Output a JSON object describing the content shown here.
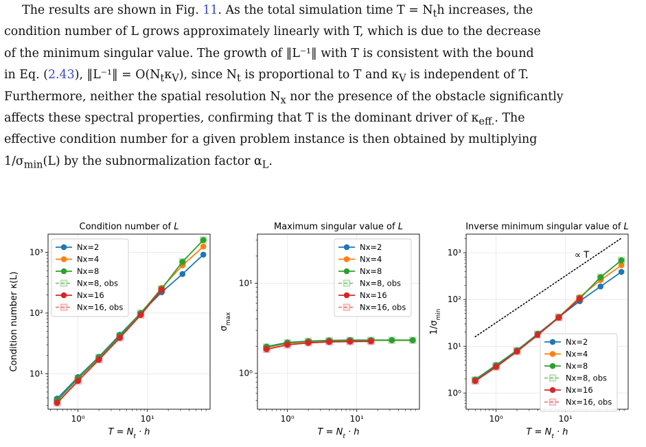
{
  "text": {
    "lines": [
      [
        "The results are shown in Fig. ",
        "11",
        ". As the total simulation time T = N",
        "t",
        "h increases, the"
      ],
      "condition number of L grows approximately linearly with T, which is due to the decrease",
      "of the minimum singular value. The growth of ‖L⁻¹‖ with T is consistent with the bound",
      [
        "in Eq. (",
        "2.43",
        "), ‖L⁻¹‖ = O(N",
        "t",
        "κ",
        "V",
        "), since N",
        "t",
        " is proportional to T and κ",
        "V",
        " is independent of T."
      ],
      [
        "Furthermore, neither the spatial resolution N",
        "x",
        " nor the presence of the obstacle significantly"
      ],
      [
        "affects these spectral properties, confirming that T is the dominant driver of κ",
        "eff.",
        ". The"
      ],
      "effective condition number for a given problem instance is then obtained by multiplying",
      [
        "1/σ",
        "min",
        "(L) by the subnormalization factor α",
        "L",
        "."
      ]
    ]
  },
  "colors": {
    "Nx2": "#1f77b4",
    "Nx4": "#ff7f0e",
    "Nx8": "#2ca02c",
    "Nx16": "#d62728",
    "grid": "#e6e6e6"
  },
  "chart_data": [
    {
      "type": "line",
      "title": "Condition number of L",
      "xlabel": "T = N_t · h",
      "ylabel": "Condition number κ(L)",
      "xscale": "log",
      "yscale": "log",
      "xlim": [
        0.37,
        80
      ],
      "ylim": [
        2.6,
        2000
      ],
      "xticks": [
        "10⁰",
        "10¹"
      ],
      "yticks": [
        "10¹",
        "10²",
        "10³"
      ],
      "legend": "top-left",
      "grid": true,
      "x": [
        0.5,
        1,
        2,
        4,
        8,
        16,
        32,
        64
      ],
      "series": [
        {
          "name": "Nx=2",
          "color_key": "Nx2",
          "values": [
            3.9,
            8.8,
            19,
            44,
            100,
            220,
            440,
            920
          ]
        },
        {
          "name": "Nx=4",
          "color_key": "Nx4",
          "values": [
            3.6,
            8.3,
            18,
            41,
            98,
            260,
            610,
            1250
          ]
        },
        {
          "name": "Nx=8",
          "color_key": "Nx8",
          "values": [
            3.6,
            8.4,
            18.5,
            42,
            100,
            250,
            700,
            1600
          ]
        },
        {
          "name": "Nx=8, obs",
          "color_key": "Nx8",
          "obs": true,
          "values": [
            3.6,
            8.4,
            18.5,
            42,
            100,
            250,
            700,
            1600
          ]
        },
        {
          "name": "Nx=16",
          "color_key": "Nx16",
          "values": [
            3.3,
            7.6,
            17,
            39,
            93,
            240,
            null,
            null
          ]
        },
        {
          "name": "Nx=16, obs",
          "color_key": "Nx16",
          "obs": true,
          "values": [
            3.3,
            7.6,
            17,
            39,
            93,
            240,
            null,
            null
          ]
        }
      ]
    },
    {
      "type": "line",
      "title": "Maximum singular value of L",
      "xlabel": "T = N_t · h",
      "ylabel": "σ_max",
      "xscale": "log",
      "yscale": "log",
      "xlim": [
        0.37,
        80
      ],
      "ylim": [
        0.4,
        35
      ],
      "xticks": [
        "10⁰",
        "10¹"
      ],
      "yticks": [
        "10⁰",
        "10¹"
      ],
      "legend": "top-right",
      "grid": true,
      "x": [
        0.5,
        1,
        2,
        4,
        8,
        16,
        32,
        64
      ],
      "series": [
        {
          "name": "Nx=2",
          "color_key": "Nx2",
          "values": [
            1.98,
            2.2,
            2.28,
            2.32,
            2.34,
            2.34,
            2.34,
            2.34
          ]
        },
        {
          "name": "Nx=4",
          "color_key": "Nx4",
          "values": [
            1.94,
            2.15,
            2.25,
            2.29,
            2.31,
            2.32,
            2.32,
            2.32
          ]
        },
        {
          "name": "Nx=8",
          "color_key": "Nx8",
          "values": [
            1.96,
            2.18,
            2.27,
            2.31,
            2.32,
            2.33,
            2.33,
            2.33
          ]
        },
        {
          "name": "Nx=8, obs",
          "color_key": "Nx8",
          "obs": true,
          "values": [
            1.96,
            2.18,
            2.27,
            2.31,
            2.32,
            2.33,
            2.33,
            2.33
          ]
        },
        {
          "name": "Nx=16",
          "color_key": "Nx16",
          "values": [
            1.85,
            2.07,
            2.18,
            2.23,
            2.25,
            2.26,
            null,
            null
          ]
        },
        {
          "name": "Nx=16, obs",
          "color_key": "Nx16",
          "obs": true,
          "values": [
            1.85,
            2.07,
            2.18,
            2.23,
            2.25,
            2.26,
            null,
            null
          ]
        }
      ]
    },
    {
      "type": "line",
      "title": "Inverse minimum singular value of L",
      "xlabel": "T = N_t · h",
      "ylabel": "1/σ_min",
      "xscale": "log",
      "yscale": "log",
      "xlim": [
        0.37,
        80
      ],
      "ylim": [
        0.45,
        2500
      ],
      "xticks": [
        "10⁰",
        "10¹"
      ],
      "yticks": [
        "10⁰",
        "10¹",
        "10²",
        "10³"
      ],
      "legend": "bottom-right",
      "grid": true,
      "annotation": "∝ T",
      "reference_line": {
        "x": [
          0.5,
          64
        ],
        "values": [
          16,
          2050
        ]
      },
      "x": [
        0.5,
        1,
        2,
        4,
        8,
        16,
        32,
        64
      ],
      "series": [
        {
          "name": "Nx=2",
          "color_key": "Nx2",
          "values": [
            1.95,
            3.95,
            8.2,
            18.5,
            42,
            92,
            190,
            390
          ]
        },
        {
          "name": "Nx=4",
          "color_key": "Nx4",
          "values": [
            1.9,
            3.8,
            8.0,
            18,
            42,
            112,
            260,
            540
          ]
        },
        {
          "name": "Nx=8",
          "color_key": "Nx8",
          "values": [
            1.9,
            3.85,
            8.1,
            18.2,
            42,
            105,
            300,
            690
          ]
        },
        {
          "name": "Nx=8, obs",
          "color_key": "Nx8",
          "obs": true,
          "values": [
            1.9,
            3.85,
            8.1,
            18.2,
            42,
            105,
            300,
            690
          ]
        },
        {
          "name": "Nx=16",
          "color_key": "Nx16",
          "values": [
            1.8,
            3.6,
            7.7,
            17.5,
            41,
            103,
            null,
            null
          ]
        },
        {
          "name": "Nx=16, obs",
          "color_key": "Nx16",
          "obs": true,
          "values": [
            1.8,
            3.6,
            7.7,
            17.5,
            41,
            103,
            null,
            null
          ]
        }
      ]
    }
  ]
}
